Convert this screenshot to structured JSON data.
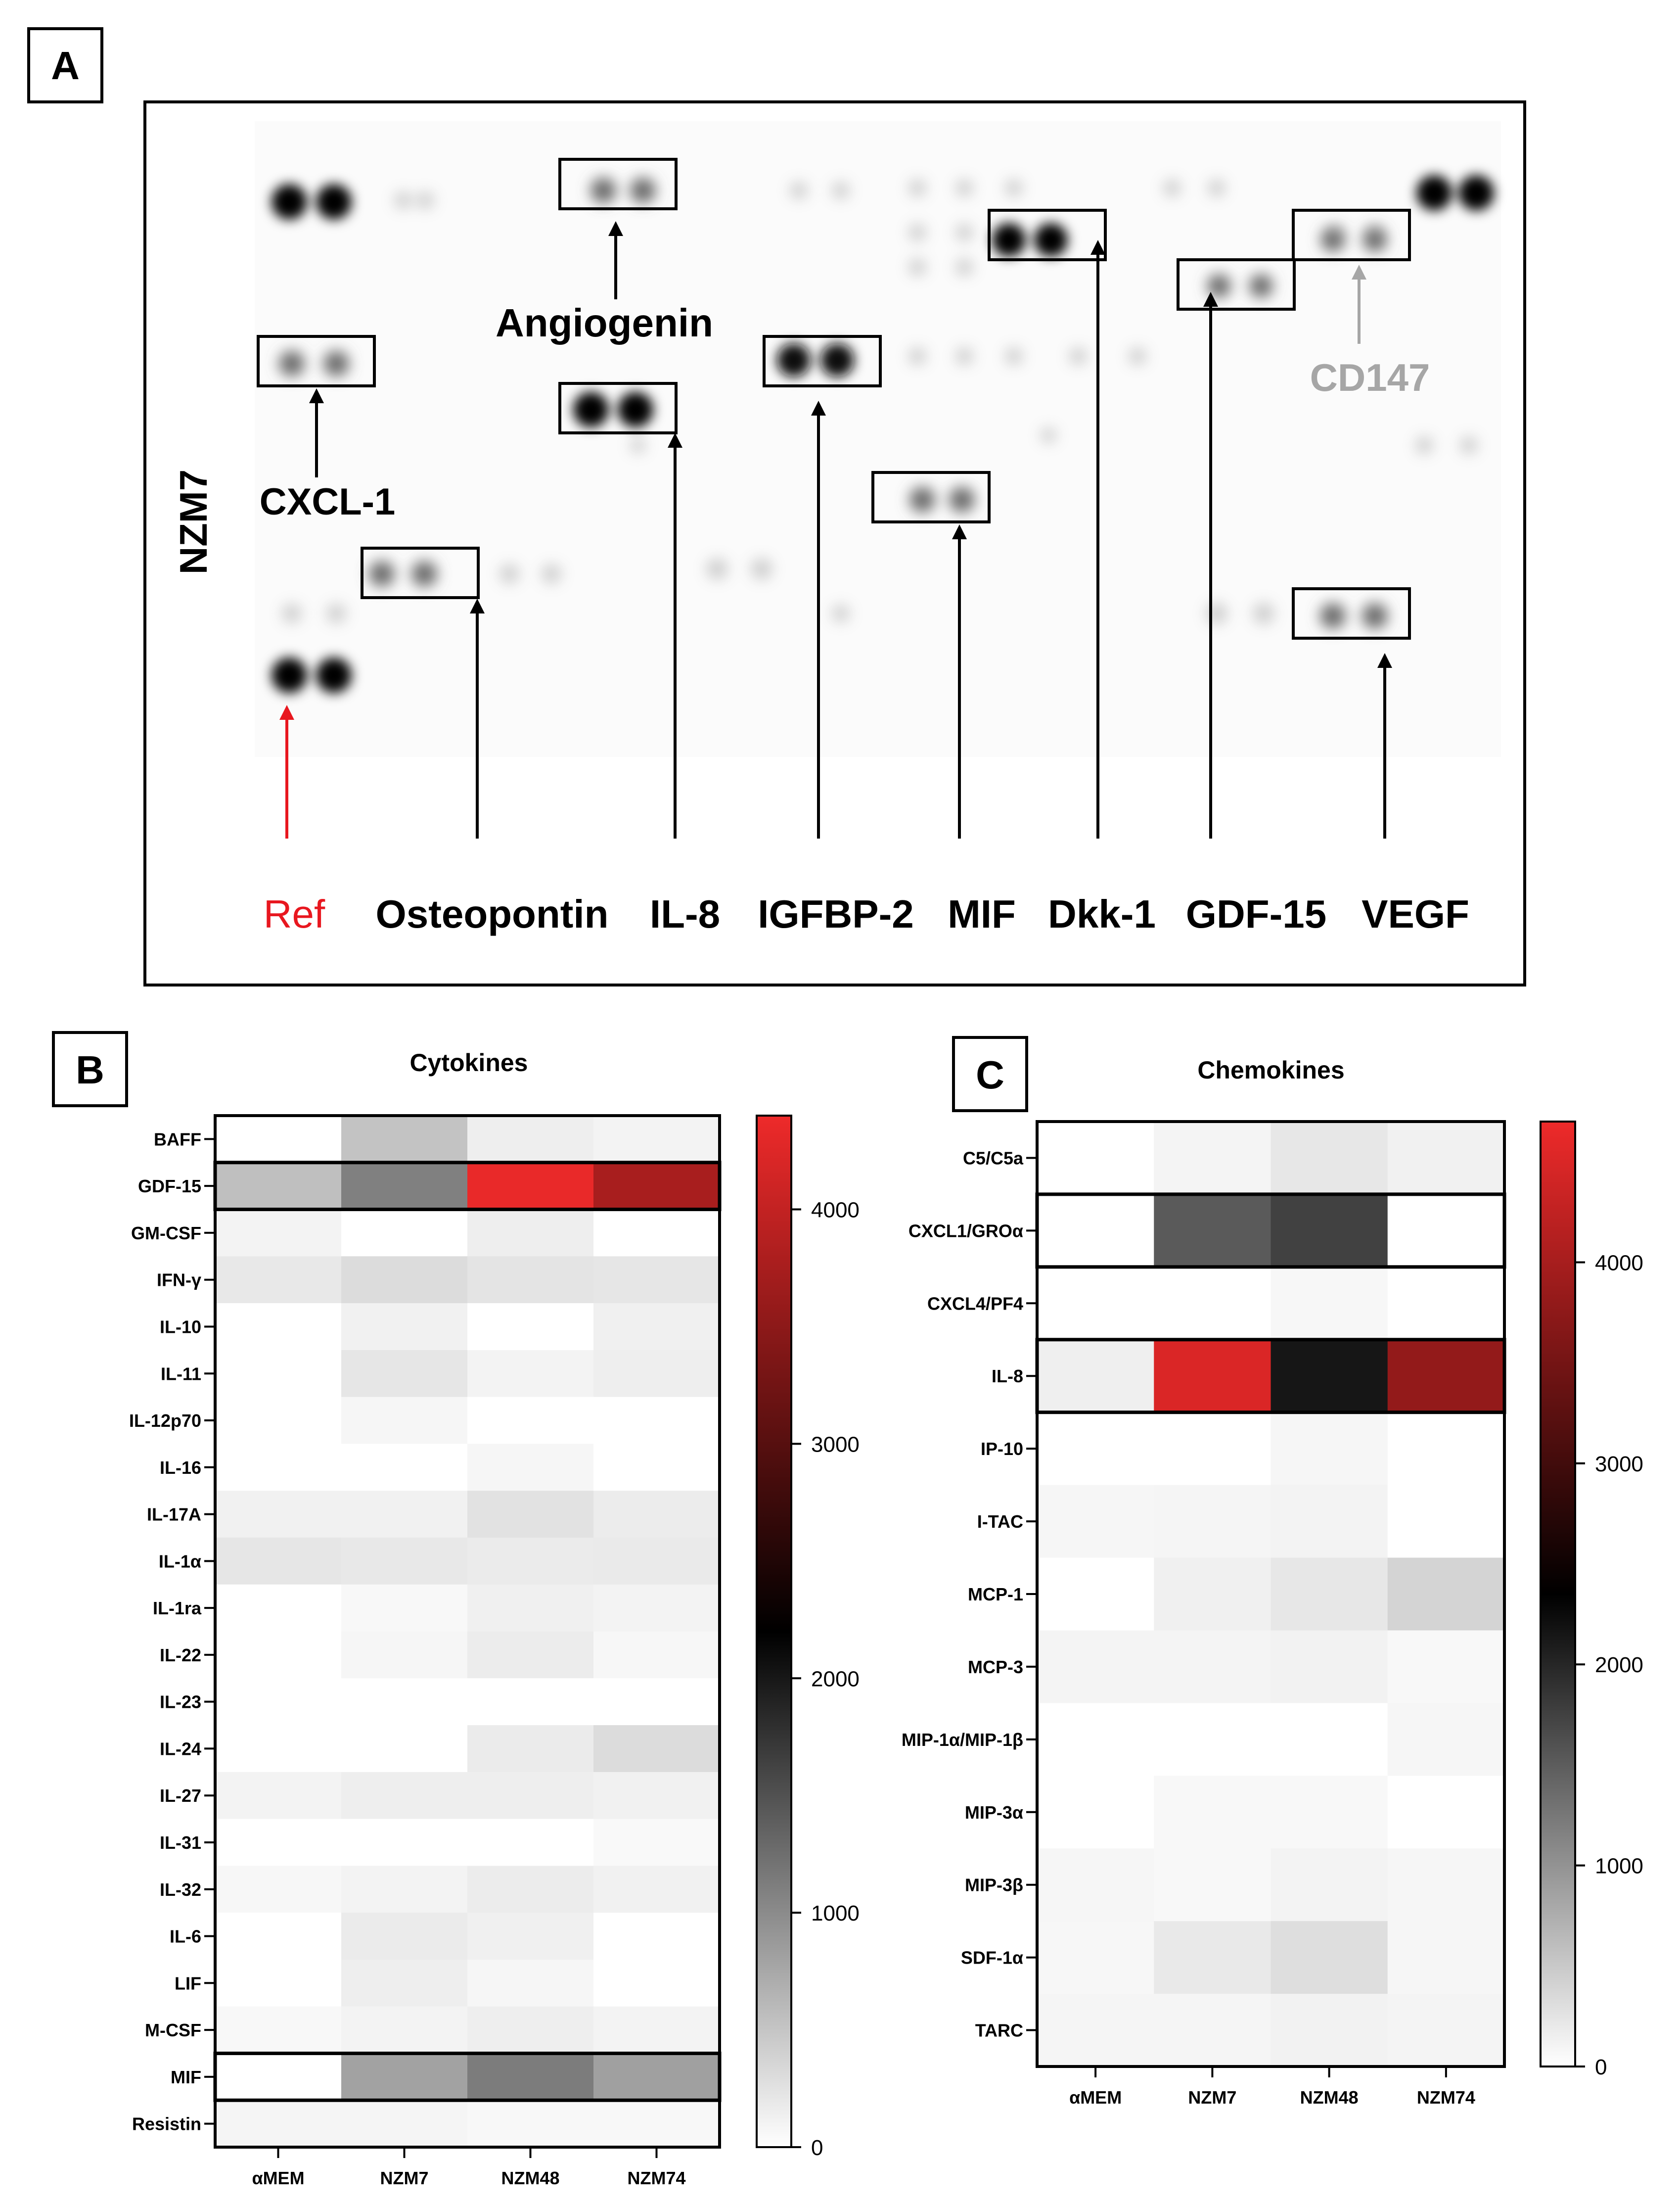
{
  "panels": {
    "a": {
      "letter": "A",
      "ylabel": "NZM7",
      "labels": [
        {
          "key": "ref",
          "text": "Ref",
          "color": "#e8171f"
        },
        {
          "key": "osteopontin",
          "text": "Osteopontin",
          "color": "#000000"
        },
        {
          "key": "il8",
          "text": "IL-8",
          "color": "#000000"
        },
        {
          "key": "igfbp2",
          "text": "IGFBP-2",
          "color": "#000000"
        },
        {
          "key": "mif",
          "text": "MIF",
          "color": "#000000"
        },
        {
          "key": "dkk1",
          "text": "Dkk-1",
          "color": "#000000"
        },
        {
          "key": "gdf15",
          "text": "GDF-15",
          "color": "#000000"
        },
        {
          "key": "vegf",
          "text": "VEGF",
          "color": "#000000"
        }
      ],
      "annotations": [
        {
          "key": "angiogenin",
          "text": "Angiogenin",
          "color": "#000000"
        },
        {
          "key": "cxcl1",
          "text": "CXCL-1",
          "color": "#000000"
        },
        {
          "key": "cd147",
          "text": "CD147",
          "color": "#a6a6a6"
        }
      ]
    },
    "b": {
      "letter": "B"
    },
    "c": {
      "letter": "C"
    }
  },
  "chart_data": [
    {
      "type": "heatmap",
      "title": "Cytokines",
      "columns": [
        "αMEM",
        "NZM7",
        "NZM48",
        "NZM74"
      ],
      "rows": [
        "BAFF",
        "GDF-15",
        "GM-CSF",
        "IFN-γ",
        "IL-10",
        "IL-11",
        "IL-12p70",
        "IL-16",
        "IL-17A",
        "IL-1α",
        "IL-1ra",
        "IL-22",
        "IL-23",
        "IL-24",
        "IL-27",
        "IL-31",
        "IL-32",
        "IL-6",
        "LIF",
        "M-CSF",
        "MIF",
        "Resistin"
      ],
      "values": [
        [
          0,
          520,
          150,
          100
        ],
        [
          550,
          1100,
          4350,
          3750
        ],
        [
          100,
          0,
          150,
          0
        ],
        [
          200,
          300,
          230,
          220
        ],
        [
          0,
          120,
          0,
          130
        ],
        [
          0,
          220,
          100,
          150
        ],
        [
          0,
          80,
          0,
          0
        ],
        [
          0,
          0,
          80,
          0
        ],
        [
          120,
          120,
          250,
          160
        ],
        [
          220,
          200,
          170,
          180
        ],
        [
          0,
          60,
          130,
          100
        ],
        [
          0,
          80,
          160,
          70
        ],
        [
          0,
          0,
          0,
          0
        ],
        [
          0,
          0,
          170,
          300
        ],
        [
          100,
          150,
          150,
          120
        ],
        [
          0,
          0,
          0,
          50
        ],
        [
          70,
          100,
          160,
          120
        ],
        [
          0,
          170,
          130,
          0
        ],
        [
          0,
          150,
          80,
          0
        ],
        [
          60,
          100,
          150,
          100
        ],
        [
          0,
          800,
          1130,
          820
        ],
        [
          90,
          90,
          60,
          60
        ]
      ],
      "boxed_rows": [
        "GDF-15",
        "MIF"
      ],
      "colorbar": {
        "range": [
          0,
          4400
        ],
        "ticks": [
          0,
          1000,
          2000,
          3000,
          4000
        ],
        "stops": [
          "#ffffff",
          "#000000",
          "#ee2a2a"
        ]
      }
    },
    {
      "type": "heatmap",
      "title": "Chemokines",
      "columns": [
        "αMEM",
        "NZM7",
        "NZM48",
        "NZM74"
      ],
      "rows": [
        "C5/C5a",
        "CXCL1/GROα",
        "CXCL4/PF4",
        "IL-8",
        "IP-10",
        "I-TAC",
        "MCP-1",
        "MCP-3",
        "MIP-1α/MIP-1β",
        "MIP-3α",
        "MIP-3β",
        "SDF-1α",
        "TARC"
      ],
      "values": [
        [
          0,
          100,
          220,
          130
        ],
        [
          0,
          1520,
          1750,
          0
        ],
        [
          0,
          0,
          70,
          0
        ],
        [
          150,
          4500,
          2150,
          3800
        ],
        [
          0,
          0,
          80,
          0
        ],
        [
          80,
          90,
          110,
          0
        ],
        [
          0,
          140,
          220,
          400
        ],
        [
          100,
          100,
          120,
          60
        ],
        [
          0,
          0,
          0,
          80
        ],
        [
          0,
          60,
          60,
          0
        ],
        [
          80,
          60,
          110,
          80
        ],
        [
          70,
          200,
          300,
          80
        ],
        [
          90,
          90,
          120,
          100
        ]
      ],
      "boxed_rows": [
        "CXCL1/GROα",
        "IL-8"
      ],
      "colorbar": {
        "range": [
          0,
          4700
        ],
        "ticks": [
          0,
          1000,
          2000,
          3000,
          4000
        ],
        "stops": [
          "#ffffff",
          "#000000",
          "#ee2a2a"
        ]
      }
    }
  ]
}
